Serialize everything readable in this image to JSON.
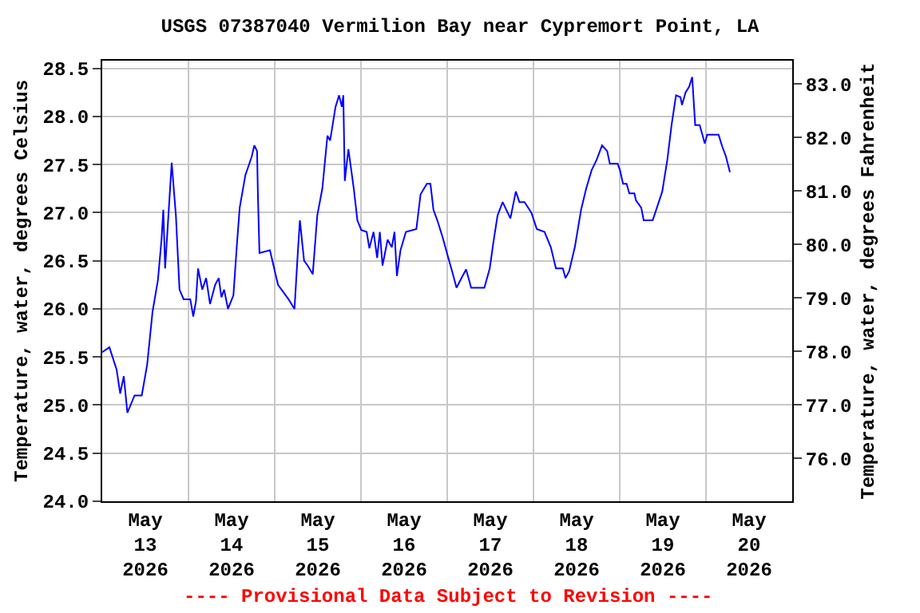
{
  "chart_data": {
    "type": "line",
    "title": "USGS 07387040 Vermilion Bay near Cypremort Point, LA",
    "ylabel": "Temperature, water, degrees Celsius",
    "y2label": "Temperature, water, degrees Fahrenheit",
    "annotations": [
      "---- Provisional Data Subject to Revision ----"
    ],
    "grid": true,
    "xlim": [
      "2026-05-13T00:00",
      "2026-05-21T00:00"
    ],
    "xticks": [
      {
        "value": "2026-05-13T12:00",
        "label": "May\n13\n2026"
      },
      {
        "value": "2026-05-14T12:00",
        "label": "May\n14\n2026"
      },
      {
        "value": "2026-05-15T12:00",
        "label": "May\n15\n2026"
      },
      {
        "value": "2026-05-16T12:00",
        "label": "May\n16\n2026"
      },
      {
        "value": "2026-05-17T12:00",
        "label": "May\n17\n2026"
      },
      {
        "value": "2026-05-18T12:00",
        "label": "May\n18\n2026"
      },
      {
        "value": "2026-05-19T12:00",
        "label": "May\n19\n2026"
      },
      {
        "value": "2026-05-20T12:00",
        "label": "May\n20\n2026"
      },
      {
        "value": "2026-05-14T00:00",
        "label": null
      },
      {
        "value": "2026-05-15T00:00",
        "label": null
      },
      {
        "value": "2026-05-16T00:00",
        "label": null
      },
      {
        "value": "2026-05-17T00:00",
        "label": null
      },
      {
        "value": "2026-05-18T00:00",
        "label": null
      },
      {
        "value": "2026-05-19T00:00",
        "label": null
      },
      {
        "value": "2026-05-20T00:00",
        "label": null
      }
    ],
    "ylim": [
      24.0,
      28.58
    ],
    "yticks": [
      {
        "value": 24,
        "label": "24.0"
      },
      {
        "value": 24.5,
        "label": "24.5"
      },
      {
        "value": 25,
        "label": "25.0"
      },
      {
        "value": 25.5,
        "label": "25.5"
      },
      {
        "value": 26,
        "label": "26.0"
      },
      {
        "value": 26.5,
        "label": "26.5"
      },
      {
        "value": 27,
        "label": "27.0"
      },
      {
        "value": 27.5,
        "label": "27.5"
      },
      {
        "value": 28,
        "label": "28.0"
      },
      {
        "value": 28.5,
        "label": "28.5"
      }
    ],
    "y2lim": [
      75.2,
      83.44
    ],
    "y2ticks": [
      {
        "value": 76,
        "label": "76.0"
      },
      {
        "value": 77,
        "label": "77.0"
      },
      {
        "value": 78,
        "label": "78.0"
      },
      {
        "value": 79,
        "label": "79.0"
      },
      {
        "value": 80,
        "label": "80.0"
      },
      {
        "value": 81,
        "label": "81.0"
      },
      {
        "value": 82,
        "label": "82.0"
      },
      {
        "value": 83,
        "label": "83.0"
      }
    ],
    "series": [
      {
        "color": "#0000ff",
        "x": [
          "2026-05-13T00:00",
          "2026-05-13T02:00",
          "2026-05-13T04:00",
          "2026-05-13T05:00",
          "2026-05-13T06:00",
          "2026-05-13T07:00",
          "2026-05-13T09:00",
          "2026-05-13T11:00",
          "2026-05-13T12:30",
          "2026-05-13T14:00",
          "2026-05-13T15:30",
          "2026-05-13T16:30",
          "2026-05-13T17:00",
          "2026-05-13T17:30",
          "2026-05-13T18:20",
          "2026-05-13T19:20",
          "2026-05-13T20:30",
          "2026-05-13T21:30",
          "2026-05-13T22:40",
          "2026-05-14T00:30",
          "2026-05-14T01:20",
          "2026-05-14T02:05",
          "2026-05-14T02:40",
          "2026-05-14T03:50",
          "2026-05-14T04:55",
          "2026-05-14T06:00",
          "2026-05-14T07:25",
          "2026-05-14T08:25",
          "2026-05-14T09:10",
          "2026-05-14T09:55",
          "2026-05-14T11:00",
          "2026-05-14T12:30",
          "2026-05-14T13:30",
          "2026-05-14T14:15",
          "2026-05-14T15:50",
          "2026-05-14T17:35",
          "2026-05-14T18:20",
          "2026-05-14T19:05",
          "2026-05-14T19:20",
          "2026-05-14T19:45",
          "2026-05-14T22:40",
          "2026-05-15T00:55",
          "2026-05-15T03:50",
          "2026-05-15T05:30",
          "2026-05-15T06:25",
          "2026-05-15T07:00",
          "2026-05-15T08:10",
          "2026-05-15T09:10",
          "2026-05-15T10:35",
          "2026-05-15T11:50",
          "2026-05-15T13:15",
          "2026-05-15T14:40",
          "2026-05-15T15:25",
          "2026-05-15T16:55",
          "2026-05-15T17:55",
          "2026-05-15T18:40",
          "2026-05-15T19:05",
          "2026-05-15T19:30",
          "2026-05-15T20:30",
          "2026-05-15T22:00",
          "2026-05-15T23:00",
          "2026-05-16T00:05",
          "2026-05-16T01:35",
          "2026-05-16T02:20",
          "2026-05-16T03:30",
          "2026-05-16T04:30",
          "2026-05-16T05:15",
          "2026-05-16T06:00",
          "2026-05-16T07:25",
          "2026-05-16T08:35",
          "2026-05-16T09:20",
          "2026-05-16T10:00",
          "2026-05-16T11:00",
          "2026-05-16T12:30",
          "2026-05-16T15:25",
          "2026-05-16T16:35",
          "2026-05-16T18:20",
          "2026-05-16T19:20",
          "2026-05-16T20:10",
          "2026-05-16T21:15",
          "2026-05-16T22:40",
          "2026-05-17T00:05",
          "2026-05-17T01:35",
          "2026-05-17T02:35",
          "2026-05-17T03:50",
          "2026-05-17T05:15",
          "2026-05-17T06:40",
          "2026-05-17T10:20",
          "2026-05-17T11:50",
          "2026-05-17T12:50",
          "2026-05-17T14:00",
          "2026-05-17T15:25",
          "2026-05-17T17:35",
          "2026-05-17T19:05",
          "2026-05-17T20:05",
          "2026-05-17T21:30",
          "2026-05-17T23:25",
          "2026-05-18T00:55",
          "2026-05-18T03:05",
          "2026-05-18T04:50",
          "2026-05-18T06:15",
          "2026-05-18T08:10",
          "2026-05-18T08:55",
          "2026-05-18T09:55",
          "2026-05-18T11:30",
          "2026-05-18T13:15",
          "2026-05-18T14:40",
          "2026-05-18T16:10",
          "2026-05-18T17:35",
          "2026-05-18T19:05",
          "2026-05-18T20:30",
          "2026-05-18T21:15",
          "2026-05-18T23:25",
          "2026-05-19T00:05",
          "2026-05-19T00:55",
          "2026-05-19T01:55",
          "2026-05-19T02:40",
          "2026-05-19T04:05",
          "2026-05-19T04:30",
          "2026-05-19T06:00",
          "2026-05-19T06:40",
          "2026-05-19T09:10",
          "2026-05-19T10:20",
          "2026-05-19T11:50",
          "2026-05-19T13:15",
          "2026-05-19T14:25",
          "2026-05-19T15:40",
          "2026-05-19T16:55",
          "2026-05-19T17:20",
          "2026-05-19T18:20",
          "2026-05-19T19:20",
          "2026-05-19T20:10",
          "2026-05-19T21:00",
          "2026-05-19T22:15",
          "2026-05-19T23:05",
          "2026-05-19T23:40",
          "2026-05-20T00:20",
          "2026-05-20T03:30",
          "2026-05-20T04:30",
          "2026-05-20T05:35",
          "2026-05-20T06:40"
        ],
        "values": [
          25.55,
          25.6,
          25.37,
          25.12,
          25.3,
          24.92,
          25.1,
          25.1,
          25.42,
          25.97,
          26.3,
          26.72,
          27.03,
          26.42,
          26.92,
          27.52,
          26.97,
          26.2,
          26.1,
          26.1,
          25.92,
          26.08,
          26.42,
          26.2,
          26.32,
          26.05,
          26.25,
          26.32,
          26.12,
          26.2,
          26.0,
          26.14,
          26.68,
          27.05,
          27.39,
          27.58,
          27.7,
          27.64,
          27.17,
          26.58,
          26.61,
          26.25,
          26.1,
          26.0,
          26.58,
          26.92,
          26.5,
          26.45,
          26.36,
          26.97,
          27.25,
          27.8,
          27.75,
          28.1,
          28.22,
          28.1,
          28.22,
          27.33,
          27.66,
          27.25,
          26.92,
          26.82,
          26.8,
          26.63,
          26.8,
          26.53,
          26.8,
          26.45,
          26.72,
          26.64,
          26.8,
          26.34,
          26.61,
          26.8,
          26.83,
          27.19,
          27.3,
          27.3,
          27.03,
          26.92,
          26.75,
          26.56,
          26.36,
          26.22,
          26.31,
          26.41,
          26.22,
          26.22,
          26.42,
          26.69,
          26.97,
          27.11,
          26.94,
          27.22,
          27.11,
          27.11,
          27.0,
          26.83,
          26.8,
          26.64,
          26.42,
          26.42,
          26.32,
          26.39,
          26.64,
          27.03,
          27.25,
          27.44,
          27.55,
          27.7,
          27.64,
          27.51,
          27.51,
          27.44,
          27.3,
          27.3,
          27.2,
          27.2,
          27.13,
          27.05,
          26.92,
          26.92,
          27.05,
          27.22,
          27.55,
          27.91,
          28.22,
          28.2,
          28.12,
          28.25,
          28.31,
          28.41,
          27.91,
          27.91,
          27.8,
          27.72,
          27.81,
          27.81,
          27.69,
          27.58,
          27.42
        ]
      }
    ]
  }
}
